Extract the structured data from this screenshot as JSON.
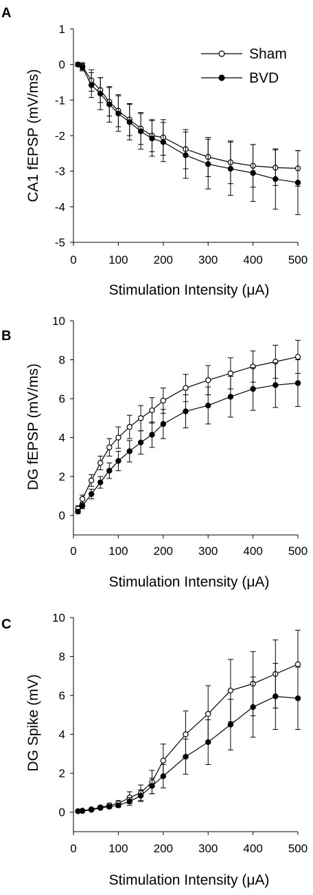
{
  "chart_data": [
    {
      "panel": "A",
      "type": "line",
      "xlabel": "Stimulation Intensity (μA)",
      "ylabel": "CA1 fEPSP (mV/ms)",
      "xlim": [
        0,
        500
      ],
      "ylim": [
        -5,
        1
      ],
      "xticks": [
        0,
        100,
        200,
        300,
        400,
        500
      ],
      "yticks": [
        1,
        0,
        -1,
        -2,
        -3,
        -4,
        -5
      ],
      "legend": {
        "position": "top-right",
        "entries": [
          "Sham",
          "BVD"
        ]
      },
      "x": [
        10,
        20,
        40,
        60,
        80,
        100,
        125,
        150,
        175,
        200,
        250,
        300,
        350,
        400,
        450,
        500
      ],
      "series": [
        {
          "name": "Sham",
          "marker": "open-circle",
          "values": [
            0.0,
            -0.05,
            -0.45,
            -0.72,
            -1.05,
            -1.3,
            -1.55,
            -1.8,
            -2.0,
            -2.05,
            -2.38,
            -2.6,
            -2.75,
            -2.85,
            -2.9,
            -2.92
          ],
          "error": [
            0.05,
            0.1,
            0.3,
            0.35,
            0.4,
            0.45,
            0.45,
            0.45,
            0.45,
            0.5,
            0.55,
            0.55,
            0.6,
            0.6,
            0.5,
            0.5
          ]
        },
        {
          "name": "BVD",
          "marker": "filled-circle",
          "values": [
            0.0,
            -0.08,
            -0.58,
            -0.82,
            -1.12,
            -1.38,
            -1.62,
            -1.88,
            -2.08,
            -2.18,
            -2.55,
            -2.8,
            -2.93,
            -3.05,
            -3.22,
            -3.32
          ],
          "error": [
            0.05,
            0.1,
            0.35,
            0.45,
            0.5,
            0.5,
            0.5,
            0.5,
            0.5,
            0.55,
            0.65,
            0.7,
            0.75,
            0.8,
            0.85,
            0.9
          ]
        }
      ]
    },
    {
      "panel": "B",
      "type": "line",
      "xlabel": "Stimulation Intensity (μA)",
      "ylabel": "DG fEPSP (mV/ms)",
      "xlim": [
        0,
        500
      ],
      "ylim": [
        -1,
        10
      ],
      "xticks": [
        0,
        100,
        200,
        300,
        400,
        500
      ],
      "yticks": [
        10,
        8,
        6,
        4,
        2,
        0
      ],
      "x": [
        10,
        20,
        40,
        60,
        80,
        100,
        125,
        150,
        175,
        200,
        250,
        300,
        350,
        400,
        450,
        500
      ],
      "series": [
        {
          "name": "Sham",
          "marker": "open-circle",
          "values": [
            0.35,
            0.85,
            1.8,
            2.7,
            3.5,
            4.0,
            4.55,
            5.0,
            5.4,
            5.9,
            6.55,
            6.95,
            7.3,
            7.65,
            7.9,
            8.15
          ],
          "error": [
            0.15,
            0.2,
            0.3,
            0.35,
            0.45,
            0.55,
            0.6,
            0.65,
            0.65,
            0.65,
            0.7,
            0.75,
            0.8,
            0.8,
            0.85,
            0.85
          ]
        },
        {
          "name": "BVD",
          "marker": "filled-circle",
          "values": [
            0.2,
            0.5,
            1.1,
            1.7,
            2.3,
            2.8,
            3.3,
            3.75,
            4.15,
            4.7,
            5.35,
            5.65,
            6.1,
            6.5,
            6.7,
            6.8
          ],
          "error": [
            0.1,
            0.15,
            0.25,
            0.3,
            0.4,
            0.5,
            0.55,
            0.6,
            0.65,
            0.75,
            0.85,
            0.95,
            1.05,
            1.1,
            1.15,
            1.2
          ]
        }
      ]
    },
    {
      "panel": "C",
      "type": "line",
      "xlabel": "Stimulation Intensity (μA)",
      "ylabel": "DG Spike (mV)",
      "xlim": [
        0,
        500
      ],
      "ylim": [
        -1,
        10
      ],
      "xticks": [
        0,
        100,
        200,
        300,
        400,
        500
      ],
      "yticks": [
        10,
        8,
        6,
        4,
        2,
        0
      ],
      "x": [
        10,
        20,
        40,
        60,
        80,
        100,
        125,
        150,
        175,
        200,
        250,
        300,
        350,
        400,
        450,
        500
      ],
      "series": [
        {
          "name": "Sham",
          "marker": "open-circle",
          "values": [
            0.05,
            0.08,
            0.15,
            0.25,
            0.35,
            0.45,
            0.75,
            1.0,
            1.55,
            2.65,
            4.0,
            5.05,
            6.25,
            6.6,
            7.1,
            7.6
          ],
          "error": [
            0.03,
            0.03,
            0.05,
            0.08,
            0.1,
            0.15,
            0.3,
            0.4,
            0.6,
            0.85,
            1.2,
            1.45,
            1.6,
            1.65,
            1.75,
            1.75
          ]
        },
        {
          "name": "BVD",
          "marker": "filled-circle",
          "values": [
            0.05,
            0.06,
            0.12,
            0.22,
            0.28,
            0.35,
            0.55,
            0.85,
            1.35,
            1.85,
            2.85,
            3.6,
            4.5,
            5.4,
            5.95,
            5.85
          ],
          "error": [
            0.03,
            0.03,
            0.05,
            0.06,
            0.08,
            0.1,
            0.2,
            0.3,
            0.4,
            0.6,
            0.9,
            1.15,
            1.3,
            1.55,
            1.7,
            1.6
          ]
        }
      ]
    }
  ]
}
